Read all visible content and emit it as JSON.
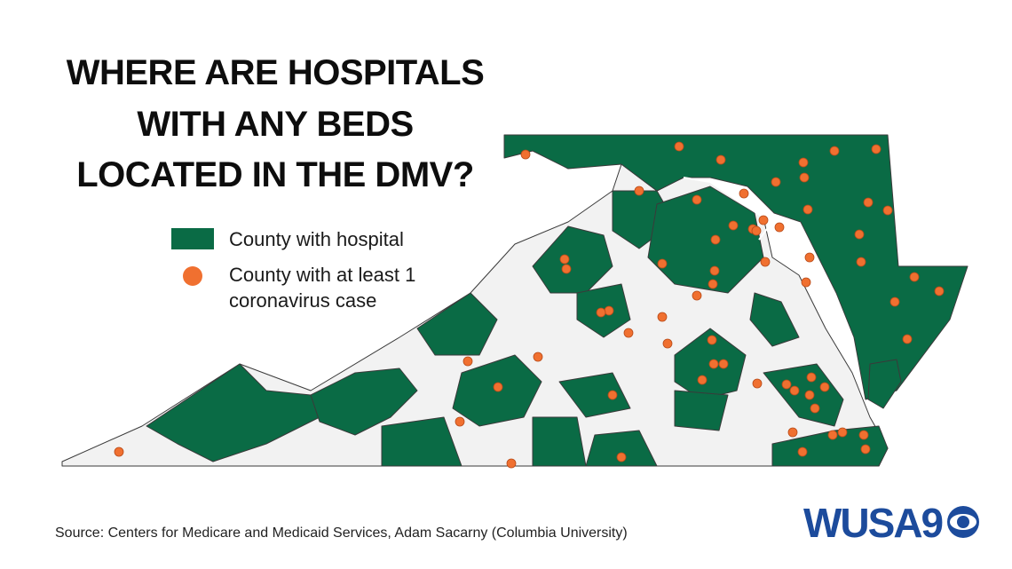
{
  "title": {
    "lines": [
      "WHERE ARE HOSPITALS",
      "WITH ANY BEDS",
      "LOCATED IN THE DMV?"
    ]
  },
  "legend": {
    "entries": [
      {
        "label": "County with hospital"
      },
      {
        "label": "County with at least 1 coronavirus case"
      }
    ]
  },
  "source": "Source: Centers for Medicare and Medicaid Services, Adam Sacarny (Columbia University)",
  "logo": "WUSA9"
}
